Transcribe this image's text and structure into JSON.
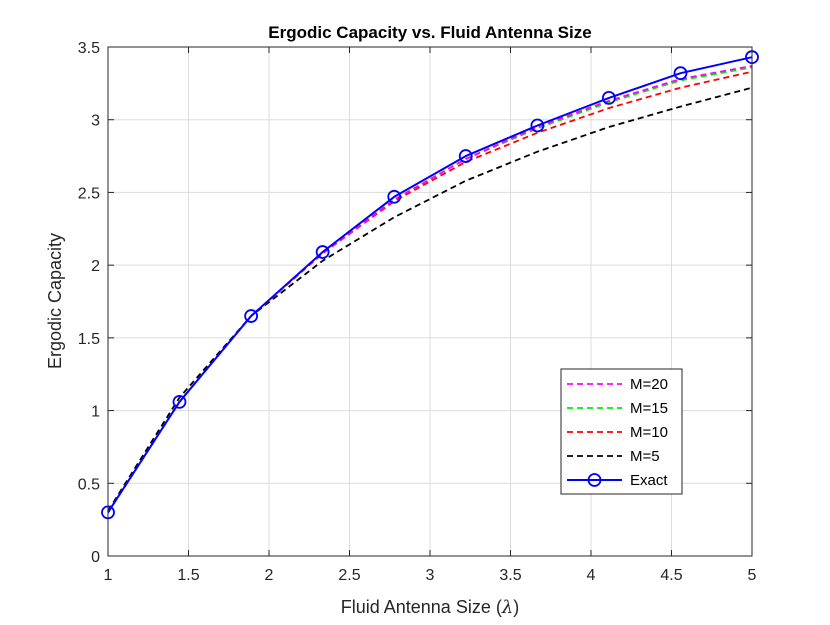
{
  "chart_data": {
    "type": "line",
    "title": "Ergodic Capacity vs. Fluid Antenna Size",
    "xlabel_text": "Fluid Antenna Size (",
    "xlabel_symbol": "λ",
    "xlabel_close": ")",
    "ylabel": "Ergodic Capacity",
    "xlim": [
      1,
      5
    ],
    "ylim": [
      0,
      3.5
    ],
    "grid": true,
    "legend_position": "lower-right",
    "xticks": [
      1,
      1.5,
      2,
      2.5,
      3,
      3.5,
      4,
      4.5,
      5
    ],
    "xtick_labels": [
      "1",
      "1.5",
      "2",
      "2.5",
      "3",
      "3.5",
      "4",
      "4.5",
      "5"
    ],
    "yticks": [
      0,
      0.5,
      1,
      1.5,
      2,
      2.5,
      3,
      3.5
    ],
    "ytick_labels": [
      "0",
      "0.5",
      "1",
      "1.5",
      "2",
      "2.5",
      "3",
      "3.5"
    ],
    "x": [
      1,
      1.444,
      1.889,
      2.333,
      2.778,
      3.222,
      3.667,
      4.111,
      4.556,
      5
    ],
    "series": [
      {
        "name": "M=20",
        "color": "#ff00ff",
        "style": "dashed",
        "marker": "none",
        "values": [
          0.3,
          1.06,
          1.65,
          2.08,
          2.45,
          2.73,
          2.95,
          3.13,
          3.28,
          3.37
        ]
      },
      {
        "name": "M=15",
        "color": "#00ee00",
        "style": "dashed",
        "marker": "none",
        "values": [
          0.3,
          1.06,
          1.65,
          2.08,
          2.45,
          2.73,
          2.94,
          3.12,
          3.27,
          3.36
        ]
      },
      {
        "name": "M=10",
        "color": "#ff0000",
        "style": "dashed",
        "marker": "none",
        "values": [
          0.3,
          1.06,
          1.65,
          2.08,
          2.44,
          2.71,
          2.91,
          3.08,
          3.22,
          3.33
        ]
      },
      {
        "name": "M=5",
        "color": "#000000",
        "style": "dashed",
        "marker": "none",
        "values": [
          0.31,
          1.09,
          1.65,
          2.03,
          2.33,
          2.58,
          2.78,
          2.95,
          3.09,
          3.22
        ]
      },
      {
        "name": "Exact",
        "color": "#0000ff",
        "style": "solid",
        "marker": "circle",
        "values": [
          0.3,
          1.06,
          1.65,
          2.09,
          2.47,
          2.75,
          2.96,
          3.15,
          3.32,
          3.43
        ]
      }
    ]
  }
}
